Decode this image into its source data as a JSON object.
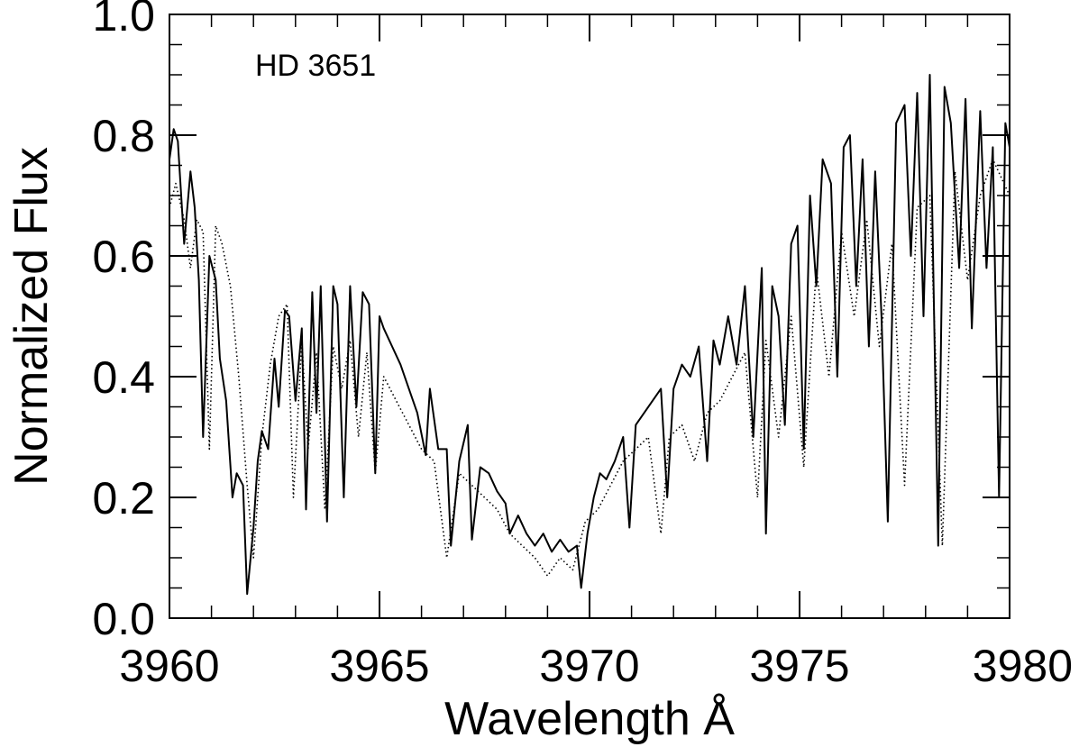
{
  "chart_data": {
    "type": "line",
    "annotation": "HD 3651",
    "xlabel": "Wavelength Å",
    "ylabel": "Normalized Flux",
    "xlim": [
      3960,
      3980
    ],
    "ylim": [
      0.0,
      1.0
    ],
    "x_ticks": [
      3960,
      3965,
      3970,
      3975,
      3980
    ],
    "x_tick_labels": [
      "3960",
      "3965",
      "3970",
      "3975",
      "3980"
    ],
    "y_ticks": [
      0.0,
      0.2,
      0.4,
      0.6,
      0.8,
      1.0
    ],
    "y_tick_labels": [
      "0.0",
      "0.2",
      "0.4",
      "0.6",
      "0.8",
      "1.0"
    ],
    "grid": false,
    "series": [
      {
        "style": "solid",
        "color": "#000000",
        "x": [
          3960.0,
          3960.1,
          3960.2,
          3960.35,
          3960.5,
          3960.6,
          3960.7,
          3960.8,
          3960.95,
          3961.1,
          3961.2,
          3961.35,
          3961.5,
          3961.6,
          3961.75,
          3961.85,
          3962.0,
          3962.1,
          3962.2,
          3962.35,
          3962.5,
          3962.6,
          3962.75,
          3962.85,
          3963.0,
          3963.15,
          3963.25,
          3963.4,
          3963.5,
          3963.6,
          3963.75,
          3963.9,
          3964.0,
          3964.15,
          3964.3,
          3964.45,
          3964.6,
          3964.75,
          3964.9,
          3965.0,
          3965.1,
          3965.3,
          3965.5,
          3965.7,
          3965.9,
          3966.1,
          3966.2,
          3966.4,
          3966.6,
          3966.7,
          3966.9,
          3967.1,
          3967.2,
          3967.4,
          3967.6,
          3967.8,
          3968.0,
          3968.1,
          3968.3,
          3968.5,
          3968.7,
          3968.9,
          3969.1,
          3969.3,
          3969.5,
          3969.7,
          3969.8,
          3969.95,
          3970.1,
          3970.25,
          3970.4,
          3970.6,
          3970.8,
          3970.95,
          3971.1,
          3971.3,
          3971.5,
          3971.7,
          3971.85,
          3972.0,
          3972.2,
          3972.4,
          3972.6,
          3972.8,
          3972.95,
          3973.1,
          3973.3,
          3973.5,
          3973.7,
          3973.9,
          3974.1,
          3974.2,
          3974.35,
          3974.5,
          3974.65,
          3974.8,
          3974.95,
          3975.1,
          3975.25,
          3975.4,
          3975.55,
          3975.75,
          3975.9,
          3976.05,
          3976.2,
          3976.35,
          3976.5,
          3976.65,
          3976.8,
          3976.95,
          3977.1,
          3977.3,
          3977.5,
          3977.65,
          3977.8,
          3977.95,
          3978.1,
          3978.3,
          3978.45,
          3978.6,
          3978.8,
          3978.95,
          3979.1,
          3979.3,
          3979.45,
          3979.6,
          3979.75,
          3979.9,
          3980.0
        ],
        "y": [
          0.76,
          0.81,
          0.79,
          0.62,
          0.74,
          0.68,
          0.56,
          0.3,
          0.6,
          0.56,
          0.43,
          0.36,
          0.2,
          0.24,
          0.22,
          0.04,
          0.15,
          0.26,
          0.31,
          0.28,
          0.43,
          0.35,
          0.51,
          0.5,
          0.36,
          0.48,
          0.18,
          0.54,
          0.34,
          0.55,
          0.16,
          0.55,
          0.52,
          0.2,
          0.55,
          0.35,
          0.54,
          0.52,
          0.24,
          0.5,
          0.48,
          0.45,
          0.42,
          0.38,
          0.34,
          0.27,
          0.38,
          0.28,
          0.28,
          0.12,
          0.26,
          0.32,
          0.13,
          0.25,
          0.24,
          0.21,
          0.19,
          0.14,
          0.17,
          0.14,
          0.12,
          0.14,
          0.11,
          0.13,
          0.11,
          0.12,
          0.05,
          0.14,
          0.2,
          0.24,
          0.23,
          0.26,
          0.3,
          0.15,
          0.32,
          0.34,
          0.36,
          0.38,
          0.2,
          0.38,
          0.42,
          0.4,
          0.45,
          0.26,
          0.46,
          0.42,
          0.5,
          0.42,
          0.55,
          0.3,
          0.58,
          0.14,
          0.55,
          0.5,
          0.32,
          0.62,
          0.65,
          0.28,
          0.7,
          0.55,
          0.76,
          0.72,
          0.4,
          0.78,
          0.8,
          0.55,
          0.76,
          0.45,
          0.74,
          0.5,
          0.16,
          0.82,
          0.85,
          0.6,
          0.87,
          0.5,
          0.9,
          0.12,
          0.88,
          0.82,
          0.58,
          0.86,
          0.48,
          0.84,
          0.58,
          0.78,
          0.2,
          0.82,
          0.78
        ],
        "name": ""
      },
      {
        "style": "dotted",
        "color": "#000000",
        "x": [
          3960.0,
          3960.15,
          3960.35,
          3960.5,
          3960.65,
          3960.8,
          3960.95,
          3961.1,
          3961.25,
          3961.45,
          3961.65,
          3961.85,
          3962.0,
          3962.2,
          3962.4,
          3962.6,
          3962.8,
          3962.95,
          3963.15,
          3963.3,
          3963.5,
          3963.7,
          3963.9,
          3964.1,
          3964.3,
          3964.5,
          3964.7,
          3964.9,
          3965.1,
          3965.4,
          3965.7,
          3966.0,
          3966.3,
          3966.6,
          3966.9,
          3967.2,
          3967.5,
          3967.8,
          3968.1,
          3968.4,
          3968.7,
          3969.0,
          3969.3,
          3969.6,
          3969.9,
          3970.2,
          3970.5,
          3970.8,
          3971.1,
          3971.4,
          3971.7,
          3971.9,
          3972.2,
          3972.5,
          3972.8,
          3973.1,
          3973.4,
          3973.7,
          3974.0,
          3974.2,
          3974.5,
          3974.8,
          3975.1,
          3975.4,
          3975.7,
          3976.0,
          3976.3,
          3976.6,
          3976.9,
          3977.2,
          3977.5,
          3977.8,
          3978.1,
          3978.4,
          3978.7,
          3979.0,
          3979.3,
          3979.6,
          3980.0
        ],
        "y": [
          0.68,
          0.72,
          0.66,
          0.58,
          0.66,
          0.64,
          0.28,
          0.65,
          0.62,
          0.55,
          0.4,
          0.22,
          0.1,
          0.3,
          0.42,
          0.5,
          0.52,
          0.2,
          0.46,
          0.28,
          0.44,
          0.18,
          0.45,
          0.38,
          0.46,
          0.3,
          0.44,
          0.24,
          0.4,
          0.36,
          0.32,
          0.28,
          0.26,
          0.1,
          0.24,
          0.22,
          0.2,
          0.18,
          0.14,
          0.12,
          0.1,
          0.07,
          0.1,
          0.08,
          0.16,
          0.18,
          0.22,
          0.26,
          0.28,
          0.3,
          0.14,
          0.3,
          0.32,
          0.26,
          0.34,
          0.36,
          0.4,
          0.44,
          0.2,
          0.46,
          0.3,
          0.5,
          0.25,
          0.58,
          0.4,
          0.64,
          0.5,
          0.66,
          0.45,
          0.62,
          0.22,
          0.68,
          0.7,
          0.12,
          0.74,
          0.56,
          0.7,
          0.76,
          0.7
        ],
        "name": ""
      }
    ]
  }
}
